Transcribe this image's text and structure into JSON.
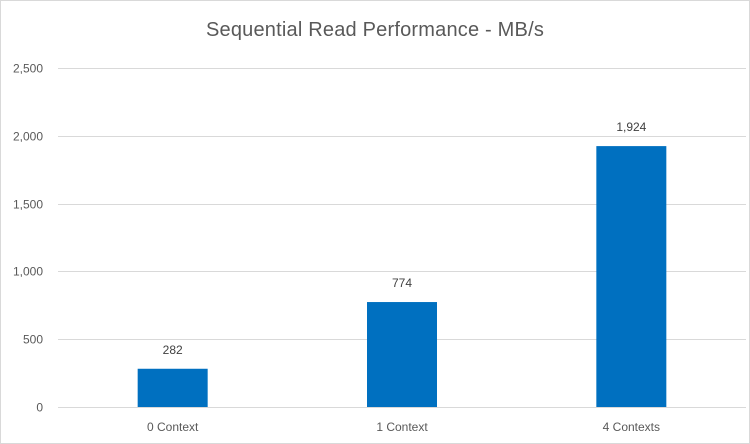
{
  "chart_data": {
    "type": "bar",
    "title": "Sequential Read Performance - MB/s",
    "xlabel": "",
    "ylabel": "",
    "categories": [
      "0 Context",
      "1 Context",
      "4 Contexts"
    ],
    "values": [
      282,
      774,
      1924
    ],
    "data_labels": [
      "282",
      "774",
      "1,924"
    ],
    "ylim": [
      0,
      2500
    ],
    "yticks": [
      0,
      500,
      1000,
      1500,
      2000,
      2500
    ],
    "ytick_labels": [
      "0",
      "500",
      "1,000",
      "1,500",
      "2,000",
      "2,500"
    ],
    "grid": true,
    "legend": "none",
    "bar_color": "#0070c0",
    "grid_color": "#d9d9d9"
  }
}
